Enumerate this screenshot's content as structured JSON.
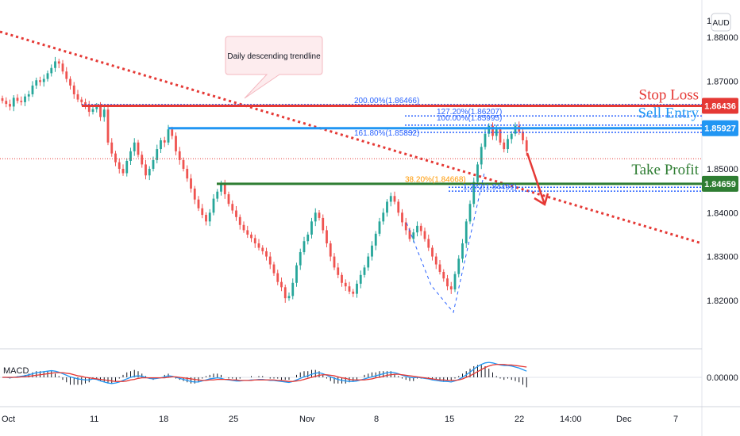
{
  "chart_data": {
    "type": "candlestick",
    "currency": "AUD",
    "price_axis": {
      "range": [
        1.8095,
        1.8885
      ],
      "ticks": [
        {
          "value": 1.88,
          "label": "1.88000"
        },
        {
          "value": 1.87,
          "label": "1.87000"
        },
        {
          "value": 1.85,
          "label": "1.85000"
        },
        {
          "value": 1.84,
          "label": "1.84000"
        },
        {
          "value": 1.83,
          "label": "1.83000"
        },
        {
          "value": 1.82,
          "label": "1.82000"
        }
      ],
      "top_partial_label": "1."
    },
    "time_axis": {
      "labels": [
        "Oct",
        "11",
        "18",
        "25",
        "Nov",
        "8",
        "15",
        "22",
        "14:00",
        "Dec",
        "7"
      ]
    },
    "levels": {
      "stop_loss": {
        "label": "Stop Loss",
        "value": 1.86436,
        "tag": "1.86436",
        "color": "#e53935"
      },
      "sell_entry": {
        "label": "Sell Entry",
        "value": 1.85927,
        "tag": "1.85927",
        "color": "#2196f3"
      },
      "take_profit": {
        "label": "Take Profit",
        "value": 1.84659,
        "tag": "1.84659",
        "color": "#2e7d32"
      }
    },
    "fib_labels": [
      {
        "text": "200.00%(1.86466)",
        "value": 1.86466,
        "color": "#2962ff"
      },
      {
        "text": "127.20%(1.86207)",
        "value": 1.86207,
        "color": "#2962ff"
      },
      {
        "text": "100.00%(1.85995)",
        "value": 1.85995,
        "color": "#2962ff"
      },
      {
        "text": "161.80%(1.85832)",
        "value": 1.85832,
        "color": "#2962ff"
      },
      {
        "text": "38.20%(1.84668)",
        "value": 1.84668,
        "color": "#ff9800"
      },
      {
        "text": "1.272(1.84491)",
        "value": 1.84491,
        "color": "#2962ff"
      }
    ],
    "annotations": {
      "trendline_callout": "Daily descending trendline"
    },
    "macd": {
      "label": "MACD",
      "ticks": [
        {
          "value": 0,
          "label": "0.00000"
        }
      ]
    },
    "series": {
      "close": [
        1.8655,
        1.8648,
        1.8642,
        1.8662,
        1.8655,
        1.8652,
        1.8665,
        1.867,
        1.869,
        1.8702,
        1.8698,
        1.8705,
        1.8718,
        1.873,
        1.8745,
        1.874,
        1.8722,
        1.8705,
        1.869,
        1.867,
        1.8658,
        1.8652,
        1.8645,
        1.863,
        1.8636,
        1.8642,
        1.8618,
        1.8635,
        1.856,
        1.8535,
        1.8515,
        1.85,
        1.849,
        1.8518,
        1.854,
        1.856,
        1.8532,
        1.851,
        1.8485,
        1.85,
        1.852,
        1.8545,
        1.8565,
        1.856,
        1.859,
        1.8575,
        1.854,
        1.852,
        1.85,
        1.8478,
        1.8455,
        1.843,
        1.841,
        1.8395,
        1.838,
        1.84,
        1.8432,
        1.8448,
        1.8465,
        1.8442,
        1.842,
        1.8405,
        1.839,
        1.8372,
        1.836,
        1.835,
        1.8342,
        1.833,
        1.832,
        1.8312,
        1.83,
        1.8282,
        1.8262,
        1.8242,
        1.823,
        1.8205,
        1.821,
        1.824,
        1.828,
        1.831,
        1.8335,
        1.835,
        1.838,
        1.84,
        1.8388,
        1.836,
        1.833,
        1.83,
        1.8275,
        1.8258,
        1.824,
        1.8232,
        1.822,
        1.8215,
        1.8238,
        1.8258,
        1.8275,
        1.83,
        1.8325,
        1.8352,
        1.838,
        1.84,
        1.8425,
        1.8438,
        1.8425,
        1.84,
        1.8378,
        1.836,
        1.834,
        1.8355,
        1.837,
        1.8358,
        1.834,
        1.832,
        1.83,
        1.8282,
        1.8265,
        1.825,
        1.8232,
        1.8225,
        1.826,
        1.8295,
        1.833,
        1.838,
        1.842,
        1.847,
        1.851,
        1.855,
        1.858,
        1.8598,
        1.8575,
        1.859,
        1.856,
        1.8545,
        1.8568,
        1.858,
        1.8598,
        1.8585,
        1.8565,
        1.854
      ],
      "macd_line": [
        0.0,
        0.0,
        -0.1,
        0.0,
        0.1,
        0.2,
        0.3,
        0.5,
        0.7,
        0.9,
        1.0,
        1.1,
        1.2,
        1.3,
        1.2,
        1.0,
        0.7,
        0.4,
        0.1,
        -0.1,
        -0.3,
        -0.4,
        -0.5,
        -0.5,
        -0.3,
        -0.4,
        -0.7,
        -0.9,
        -1.1,
        -1.2,
        -1.1,
        -0.9,
        -0.6,
        -0.3,
        0.0,
        0.2,
        0.3,
        0.2,
        0.0,
        -0.2,
        -0.3,
        -0.2,
        -0.1,
        0.1,
        0.3,
        0.2,
        0.0,
        -0.2,
        -0.4,
        -0.6,
        -0.8,
        -0.9,
        -0.9,
        -0.7,
        -0.5,
        -0.3,
        -0.2,
        -0.1,
        -0.2,
        -0.4,
        -0.5,
        -0.6,
        -0.7,
        -0.7,
        -0.6,
        -0.6,
        -0.5,
        -0.5,
        -0.4,
        -0.4,
        -0.5,
        -0.6,
        -0.6,
        -0.7,
        -0.8,
        -0.9,
        -1.0,
        -0.8,
        -0.5,
        -0.2,
        0.1,
        0.3,
        0.6,
        0.8,
        0.9,
        0.7,
        0.4,
        0.1,
        -0.2,
        -0.4,
        -0.6,
        -0.7,
        -0.8,
        -0.8,
        -0.7,
        -0.5,
        -0.3,
        -0.1,
        0.1,
        0.3,
        0.5,
        0.7,
        0.9,
        1.0,
        0.9,
        0.7,
        0.4,
        0.2,
        0.0,
        -0.1,
        0.0,
        -0.1,
        -0.2,
        -0.3,
        -0.5,
        -0.6,
        -0.7,
        -0.8,
        -0.8,
        -0.9,
        -0.7,
        -0.4,
        0.0,
        0.5,
        1.0,
        1.6,
        2.1,
        2.5,
        2.8,
        2.9,
        2.8,
        2.6,
        2.4,
        2.3,
        2.3,
        2.2,
        2.0,
        1.8,
        1.5,
        1.2
      ],
      "signal_line": [
        0.0,
        0.0,
        0.0,
        0.0,
        0.0,
        0.1,
        0.1,
        0.2,
        0.3,
        0.4,
        0.5,
        0.6,
        0.7,
        0.8,
        0.9,
        0.9,
        0.9,
        0.8,
        0.7,
        0.5,
        0.3,
        0.2,
        0.0,
        -0.1,
        -0.2,
        -0.3,
        -0.4,
        -0.5,
        -0.6,
        -0.7,
        -0.8,
        -0.8,
        -0.8,
        -0.7,
        -0.5,
        -0.4,
        -0.2,
        -0.1,
        -0.1,
        -0.1,
        -0.1,
        -0.1,
        -0.1,
        -0.1,
        0.0,
        0.1,
        0.1,
        0.0,
        -0.1,
        -0.2,
        -0.3,
        -0.4,
        -0.5,
        -0.6,
        -0.6,
        -0.5,
        -0.5,
        -0.4,
        -0.4,
        -0.4,
        -0.4,
        -0.5,
        -0.5,
        -0.6,
        -0.6,
        -0.6,
        -0.6,
        -0.5,
        -0.5,
        -0.5,
        -0.5,
        -0.5,
        -0.5,
        -0.6,
        -0.6,
        -0.7,
        -0.8,
        -0.8,
        -0.7,
        -0.6,
        -0.4,
        -0.2,
        0.0,
        0.2,
        0.4,
        0.5,
        0.5,
        0.4,
        0.3,
        0.1,
        -0.1,
        -0.2,
        -0.4,
        -0.5,
        -0.5,
        -0.5,
        -0.5,
        -0.4,
        -0.3,
        -0.1,
        0.0,
        0.2,
        0.4,
        0.5,
        0.6,
        0.6,
        0.5,
        0.4,
        0.3,
        0.2,
        0.1,
        0.0,
        -0.1,
        -0.2,
        -0.3,
        -0.4,
        -0.5,
        -0.5,
        -0.6,
        -0.6,
        -0.6,
        -0.5,
        -0.3,
        0.0,
        0.3,
        0.7,
        1.1,
        1.5,
        1.9,
        2.2,
        2.4,
        2.5,
        2.5,
        2.5,
        2.4,
        2.4,
        2.3,
        2.2,
        2.1,
        2.0
      ]
    }
  }
}
